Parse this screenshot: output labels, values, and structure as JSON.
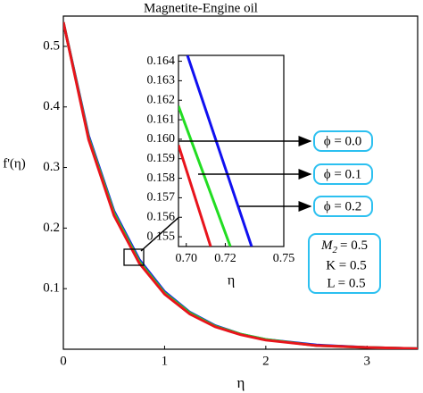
{
  "chart_data": [
    {
      "type": "line",
      "title": "Magnetite-Engine oil",
      "xlabel": "η",
      "ylabel": "f'(η)",
      "x": [
        0,
        0.25,
        0.5,
        0.75,
        1,
        1.25,
        1.5,
        1.75,
        2,
        2.5,
        3,
        3.5
      ],
      "series": [
        {
          "color": "#e8141c",
          "values": [
            0.54,
            0.346,
            0.221,
            0.142,
            0.091,
            0.058,
            0.037,
            0.024,
            0.015,
            0.006,
            0.003,
            0.001
          ]
        },
        {
          "color": "#22dd22",
          "values": [
            0.54,
            0.349,
            0.225,
            0.145,
            0.093,
            0.06,
            0.038,
            0.025,
            0.016,
            0.006,
            0.003,
            0.001
          ]
        },
        {
          "color": "#1010f0",
          "values": [
            0.54,
            0.352,
            0.228,
            0.148,
            0.095,
            0.061,
            0.039,
            0.025,
            0.016,
            0.007,
            0.003,
            0.001
          ]
        }
      ],
      "xlim": [
        0,
        3.5
      ],
      "ylim": [
        0,
        0.55
      ],
      "xticks": [
        0,
        1,
        2,
        3
      ],
      "yticks": [
        0.1,
        0.2,
        0.3,
        0.4,
        0.5
      ],
      "params": {
        "m_symbol": "M",
        "m_subscript": "2",
        "m_value": "= 0.5",
        "others": [
          "K = 0.5",
          "L = 0.5"
        ]
      }
    },
    {
      "type": "line",
      "xlabel": "η",
      "series": [
        {
          "name": "ϕ = 0.0",
          "color": "#e8141c",
          "x": [
            0.696,
            0.7125
          ],
          "values": [
            0.1597,
            0.1545
          ]
        },
        {
          "name": "ϕ = 0.1",
          "color": "#22dd22",
          "x": [
            0.696,
            0.7226
          ],
          "values": [
            0.1617,
            0.1545
          ]
        },
        {
          "name": "ϕ = 0.2",
          "color": "#1010f0",
          "x": [
            0.7006,
            0.7335
          ],
          "values": [
            0.1643,
            0.1545
          ]
        }
      ],
      "xlim": [
        0.696,
        0.75
      ],
      "ylim": [
        0.1545,
        0.1643
      ],
      "xticks": [
        {
          "value": 0.7,
          "label": "0.70"
        },
        0.72,
        0.75
      ],
      "yticks": [
        0.155,
        0.156,
        0.157,
        0.158,
        0.159,
        {
          "value": 0.16,
          "label": "0.160"
        },
        0.161,
        0.162,
        0.163,
        0.164
      ]
    }
  ]
}
